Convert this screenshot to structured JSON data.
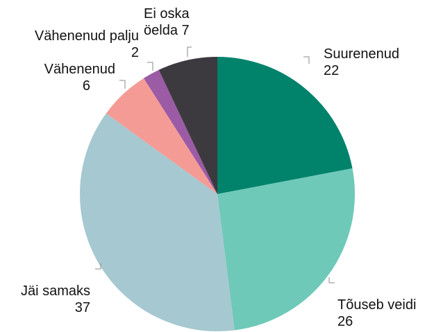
{
  "chart_data": {
    "type": "pie",
    "categories": [
      "Suurenenud",
      "Tõuseb veidi",
      "Jäi samaks",
      "Vähenenud",
      "Vähenenud palju",
      "Ei oska öelda"
    ],
    "values": [
      22,
      26,
      37,
      6,
      2,
      7
    ],
    "colors": [
      "#00826b",
      "#6fc9b8",
      "#a6c8d0",
      "#f59b96",
      "#9b5ba5",
      "#3d3a3f"
    ]
  }
}
